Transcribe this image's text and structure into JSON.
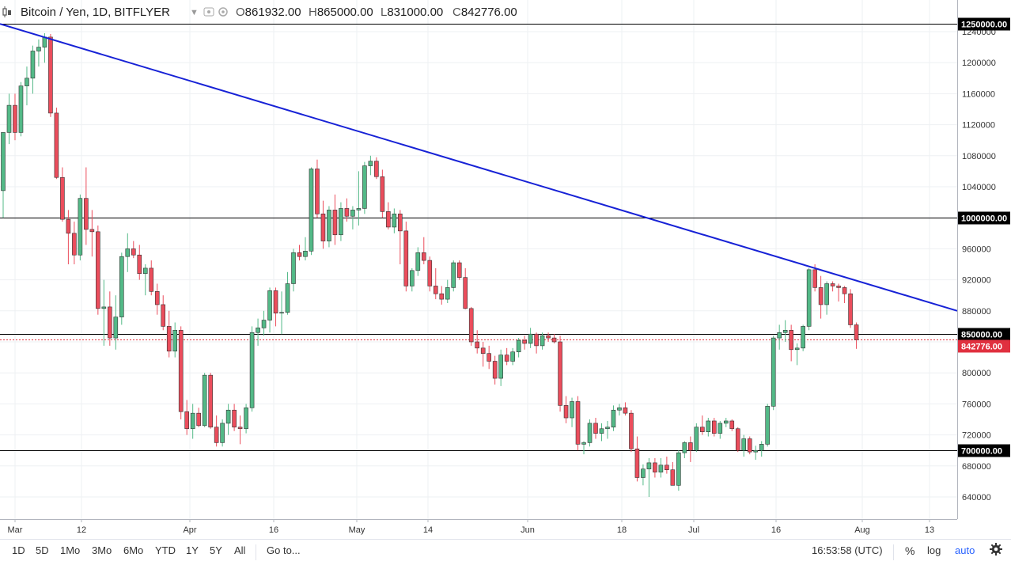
{
  "header": {
    "symbol_title": "Bitcoin / Yen, 1D, BITFLYER",
    "open_label": "O",
    "open_value": "861932.00",
    "high_label": "H",
    "high_value": "865000.00",
    "low_label": "L",
    "low_value": "831000.00",
    "close_label": "C",
    "close_value": "842776.00"
  },
  "toolbar": {
    "ranges": [
      "1D",
      "5D",
      "1Mo",
      "3Mo",
      "6Mo",
      "YTD",
      "1Y",
      "5Y",
      "All"
    ],
    "goto_label": "Go to...",
    "clock": "16:53:58 (UTC)",
    "percent_label": "%",
    "log_label": "log",
    "auto_label": "auto",
    "settings_icon": "gear-icon"
  },
  "colors": {
    "up": "#53b987",
    "down": "#eb4d5c",
    "trendline": "#1722d6",
    "hline": "#000000",
    "price_line": "#e0303f"
  },
  "chart_data": {
    "type": "candlestick",
    "ylim": [
      620000,
      1260000
    ],
    "y_ticks": [
      640000,
      680000,
      720000,
      760000,
      800000,
      840000,
      880000,
      920000,
      960000,
      1000000,
      1040000,
      1080000,
      1120000,
      1160000,
      1200000,
      1240000
    ],
    "x_ticks": [
      "Mar",
      "12",
      "Apr",
      "16",
      "May",
      "14",
      "Jun",
      "18",
      "Jul",
      "16",
      "Aug",
      "13"
    ],
    "horizontal_levels": [
      "1250000.00",
      "1000000.00",
      "850000.00",
      "700000.00"
    ],
    "last_price": "842776.00",
    "trendline": {
      "start": 1250000,
      "end": 880000
    },
    "candles": [
      [
        1035000,
        1110000,
        1000000,
        1110000
      ],
      [
        1110000,
        1160000,
        1095000,
        1145000
      ],
      [
        1145000,
        1160000,
        1100000,
        1110000
      ],
      [
        1110000,
        1175000,
        1105000,
        1170000
      ],
      [
        1170000,
        1195000,
        1145000,
        1180000
      ],
      [
        1180000,
        1222000,
        1160000,
        1215000
      ],
      [
        1215000,
        1230000,
        1195000,
        1220000
      ],
      [
        1220000,
        1238000,
        1200000,
        1233000
      ],
      [
        1233000,
        1237000,
        1130000,
        1135000
      ],
      [
        1135000,
        1142000,
        1050000,
        1052000
      ],
      [
        1052000,
        1065000,
        995000,
        998000
      ],
      [
        998000,
        1010000,
        940000,
        980000
      ],
      [
        980000,
        995000,
        940000,
        952000
      ],
      [
        952000,
        1030000,
        945000,
        1025000
      ],
      [
        1025000,
        1065000,
        965000,
        985000
      ],
      [
        985000,
        1010000,
        950000,
        982000
      ],
      [
        982000,
        990000,
        875000,
        883000
      ],
      [
        883000,
        920000,
        835000,
        885000
      ],
      [
        885000,
        905000,
        835000,
        845000
      ],
      [
        845000,
        900000,
        830000,
        872000
      ],
      [
        872000,
        955000,
        862000,
        950000
      ],
      [
        950000,
        980000,
        930000,
        960000
      ],
      [
        960000,
        970000,
        948000,
        952000
      ],
      [
        952000,
        965000,
        920000,
        928000
      ],
      [
        928000,
        940000,
        900000,
        935000
      ],
      [
        935000,
        945000,
        900000,
        905000
      ],
      [
        905000,
        915000,
        875000,
        888000
      ],
      [
        888000,
        900000,
        855000,
        860000
      ],
      [
        860000,
        880000,
        820000,
        828000
      ],
      [
        828000,
        865000,
        820000,
        855000
      ],
      [
        855000,
        860000,
        740000,
        750000
      ],
      [
        750000,
        765000,
        720000,
        728000
      ],
      [
        728000,
        760000,
        715000,
        748000
      ],
      [
        748000,
        755000,
        730000,
        732000
      ],
      [
        732000,
        800000,
        730000,
        797000
      ],
      [
        797000,
        800000,
        728000,
        730000
      ],
      [
        730000,
        745000,
        705000,
        710000
      ],
      [
        710000,
        740000,
        705000,
        735000
      ],
      [
        735000,
        760000,
        720000,
        752000
      ],
      [
        752000,
        760000,
        725000,
        730000
      ],
      [
        730000,
        745000,
        708000,
        728000
      ],
      [
        728000,
        760000,
        722000,
        755000
      ],
      [
        755000,
        860000,
        750000,
        852000
      ],
      [
        852000,
        870000,
        835000,
        858000
      ],
      [
        858000,
        880000,
        848000,
        868000
      ],
      [
        868000,
        910000,
        852000,
        906000
      ],
      [
        906000,
        910000,
        860000,
        877000
      ],
      [
        877000,
        905000,
        850000,
        878000
      ],
      [
        878000,
        930000,
        875000,
        915000
      ],
      [
        915000,
        960000,
        905000,
        955000
      ],
      [
        955000,
        965000,
        945000,
        950000
      ],
      [
        950000,
        975000,
        945000,
        957000
      ],
      [
        957000,
        1065000,
        952000,
        1063000
      ],
      [
        1063000,
        1075000,
        1000000,
        1005000
      ],
      [
        1005000,
        1022000,
        960000,
        970000
      ],
      [
        970000,
        1015000,
        962000,
        1010000
      ],
      [
        1010000,
        1030000,
        965000,
        978000
      ],
      [
        978000,
        1020000,
        970000,
        1012000
      ],
      [
        1012000,
        1025000,
        995000,
        1002000
      ],
      [
        1002000,
        1015000,
        985000,
        1010000
      ],
      [
        1010000,
        1060000,
        990000,
        1012000
      ],
      [
        1012000,
        1072000,
        1005000,
        1067000
      ],
      [
        1067000,
        1080000,
        1055000,
        1073000
      ],
      [
        1073000,
        1078000,
        1050000,
        1053000
      ],
      [
        1053000,
        1062000,
        1000000,
        1008000
      ],
      [
        1008000,
        1020000,
        985000,
        988000
      ],
      [
        988000,
        1012000,
        980000,
        1005000
      ],
      [
        1005000,
        1010000,
        940000,
        983000
      ],
      [
        983000,
        995000,
        905000,
        912000
      ],
      [
        912000,
        935000,
        905000,
        932000
      ],
      [
        932000,
        962000,
        925000,
        955000
      ],
      [
        955000,
        975000,
        940000,
        945000
      ],
      [
        945000,
        950000,
        905000,
        912000
      ],
      [
        912000,
        935000,
        895000,
        902000
      ],
      [
        902000,
        912000,
        888000,
        895000
      ],
      [
        895000,
        920000,
        890000,
        910000
      ],
      [
        910000,
        945000,
        905000,
        942000
      ],
      [
        942000,
        945000,
        920000,
        923000
      ],
      [
        923000,
        935000,
        882000,
        883000
      ],
      [
        883000,
        885000,
        835000,
        840000
      ],
      [
        840000,
        855000,
        825000,
        832000
      ],
      [
        832000,
        840000,
        808000,
        825000
      ],
      [
        825000,
        835000,
        805000,
        815000
      ],
      [
        815000,
        822000,
        785000,
        793000
      ],
      [
        793000,
        830000,
        783000,
        823000
      ],
      [
        823000,
        832000,
        810000,
        815000
      ],
      [
        815000,
        832000,
        810000,
        827000
      ],
      [
        827000,
        845000,
        820000,
        842000
      ],
      [
        842000,
        848000,
        830000,
        838000
      ],
      [
        838000,
        858000,
        832000,
        850000
      ],
      [
        850000,
        852000,
        825000,
        835000
      ],
      [
        835000,
        852000,
        830000,
        848000
      ],
      [
        848000,
        852000,
        840000,
        845000
      ],
      [
        845000,
        850000,
        838000,
        840000
      ],
      [
        840000,
        848000,
        750000,
        758000
      ],
      [
        758000,
        770000,
        735000,
        742000
      ],
      [
        742000,
        768000,
        730000,
        763000
      ],
      [
        763000,
        770000,
        700000,
        708000
      ],
      [
        708000,
        712000,
        695000,
        710000
      ],
      [
        710000,
        740000,
        705000,
        735000
      ],
      [
        735000,
        742000,
        715000,
        722000
      ],
      [
        722000,
        735000,
        712000,
        728000
      ],
      [
        728000,
        738000,
        715000,
        730000
      ],
      [
        730000,
        758000,
        725000,
        752000
      ],
      [
        752000,
        760000,
        745000,
        755000
      ],
      [
        755000,
        762000,
        745000,
        748000
      ],
      [
        748000,
        752000,
        698000,
        702000
      ],
      [
        702000,
        718000,
        660000,
        665000
      ],
      [
        665000,
        682000,
        655000,
        676000
      ],
      [
        676000,
        690000,
        640000,
        684000
      ],
      [
        684000,
        690000,
        665000,
        672000
      ],
      [
        672000,
        690000,
        665000,
        681000
      ],
      [
        681000,
        692000,
        670000,
        675000
      ],
      [
        675000,
        685000,
        655000,
        655000
      ],
      [
        655000,
        700000,
        648000,
        697000
      ],
      [
        697000,
        712000,
        690000,
        710000
      ],
      [
        710000,
        718000,
        685000,
        700000
      ],
      [
        700000,
        735000,
        698000,
        730000
      ],
      [
        730000,
        745000,
        720000,
        724000
      ],
      [
        724000,
        742000,
        718000,
        738000
      ],
      [
        738000,
        742000,
        718000,
        722000
      ],
      [
        722000,
        738000,
        715000,
        735000
      ],
      [
        735000,
        742000,
        730000,
        738000
      ],
      [
        738000,
        740000,
        725000,
        728000
      ],
      [
        728000,
        730000,
        698000,
        700000
      ],
      [
        700000,
        720000,
        692000,
        715000
      ],
      [
        715000,
        718000,
        695000,
        698000
      ],
      [
        698000,
        706000,
        688000,
        700000
      ],
      [
        700000,
        712000,
        692000,
        708000
      ],
      [
        708000,
        760000,
        705000,
        757000
      ],
      [
        757000,
        848000,
        752000,
        845000
      ],
      [
        845000,
        862000,
        830000,
        852000
      ],
      [
        852000,
        868000,
        840000,
        855000
      ],
      [
        855000,
        862000,
        815000,
        830000
      ],
      [
        830000,
        838000,
        810000,
        832000
      ],
      [
        832000,
        862000,
        828000,
        860000
      ],
      [
        860000,
        935000,
        855000,
        933000
      ],
      [
        933000,
        940000,
        905000,
        910000
      ],
      [
        910000,
        925000,
        870000,
        888000
      ],
      [
        888000,
        918000,
        875000,
        915000
      ],
      [
        915000,
        918000,
        905000,
        912000
      ],
      [
        912000,
        915000,
        892000,
        910000
      ],
      [
        910000,
        912000,
        890000,
        902000
      ],
      [
        902000,
        908000,
        858000,
        861932
      ],
      [
        861932,
        865000,
        831000,
        842776
      ]
    ]
  }
}
